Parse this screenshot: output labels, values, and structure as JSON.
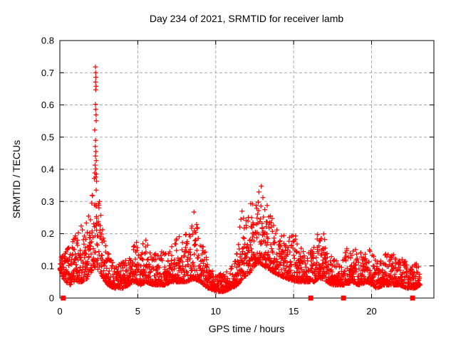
{
  "title": "Day 234 of 2021, SRMTID for receiver lamb",
  "colors": {
    "marker": "#ff0000",
    "grid": "#a8a8a8",
    "frame": "#000000",
    "background": "#ffffff",
    "text": "#000000"
  },
  "chart_data": {
    "type": "scatter",
    "title": "Day 234 of 2021, SRMTID for receiver lamb",
    "xlabel": "GPS time / hours",
    "ylabel": "SRMTID / TECUs",
    "xlim": [
      0,
      24
    ],
    "ylim": [
      0,
      0.8
    ],
    "grid": true,
    "grid_style": "dashed",
    "legend": "none",
    "marker": "plus",
    "marker_color": "#ff0000",
    "x_ticks": {
      "values": [
        0,
        5,
        10,
        15,
        20
      ],
      "labels": [
        "0",
        "5",
        "10",
        "15",
        "20"
      ]
    },
    "y_ticks": {
      "values": [
        0,
        0.1,
        0.2,
        0.3,
        0.4,
        0.5,
        0.6,
        0.7,
        0.8
      ],
      "labels": [
        "0",
        "0.1",
        "0.2",
        "0.3",
        "0.4",
        "0.5",
        "0.6",
        "0.7",
        "0.8"
      ]
    },
    "envelope": {
      "description": "Dense scatter of SRMTID values vs GPS time. Control points [hour, min_value, max_value] of the point-cloud envelope read from the plot; cloud density is concentrated toward the lower bound.",
      "points": [
        [
          0.0,
          0.09,
          0.125
        ],
        [
          0.25,
          0.06,
          0.14
        ],
        [
          0.6,
          0.04,
          0.16
        ],
        [
          1.0,
          0.05,
          0.2
        ],
        [
          1.4,
          0.05,
          0.23
        ],
        [
          1.75,
          0.06,
          0.26
        ],
        [
          2.0,
          0.08,
          0.32
        ],
        [
          2.3,
          0.1,
          0.36
        ],
        [
          2.55,
          0.08,
          0.32
        ],
        [
          2.8,
          0.06,
          0.2
        ],
        [
          3.1,
          0.04,
          0.14
        ],
        [
          3.5,
          0.03,
          0.11
        ],
        [
          4.0,
          0.03,
          0.11
        ],
        [
          4.4,
          0.04,
          0.13
        ],
        [
          4.8,
          0.05,
          0.19
        ],
        [
          5.2,
          0.04,
          0.15
        ],
        [
          5.55,
          0.05,
          0.21
        ],
        [
          5.9,
          0.04,
          0.13
        ],
        [
          6.3,
          0.04,
          0.15
        ],
        [
          6.8,
          0.04,
          0.14
        ],
        [
          7.2,
          0.05,
          0.16
        ],
        [
          7.7,
          0.05,
          0.2
        ],
        [
          8.1,
          0.05,
          0.2
        ],
        [
          8.6,
          0.06,
          0.27
        ],
        [
          9.0,
          0.05,
          0.19
        ],
        [
          9.5,
          0.03,
          0.12
        ],
        [
          10.0,
          0.02,
          0.07
        ],
        [
          10.5,
          0.02,
          0.08
        ],
        [
          11.0,
          0.03,
          0.1
        ],
        [
          11.4,
          0.04,
          0.16
        ],
        [
          11.7,
          0.06,
          0.28
        ],
        [
          11.95,
          0.07,
          0.31
        ],
        [
          12.2,
          0.08,
          0.3
        ],
        [
          12.5,
          0.1,
          0.33
        ],
        [
          12.8,
          0.11,
          0.36
        ],
        [
          13.05,
          0.1,
          0.34
        ],
        [
          13.35,
          0.09,
          0.3
        ],
        [
          13.7,
          0.08,
          0.25
        ],
        [
          14.1,
          0.07,
          0.22
        ],
        [
          14.6,
          0.06,
          0.18
        ],
        [
          15.05,
          0.05,
          0.21
        ],
        [
          15.5,
          0.05,
          0.16
        ],
        [
          16.0,
          0.05,
          0.14
        ],
        [
          16.35,
          0.05,
          0.17
        ],
        [
          16.6,
          0.06,
          0.23
        ],
        [
          16.85,
          0.06,
          0.26
        ],
        [
          17.15,
          0.05,
          0.17
        ],
        [
          17.5,
          0.04,
          0.13
        ],
        [
          17.9,
          0.04,
          0.12
        ],
        [
          18.3,
          0.04,
          0.15
        ],
        [
          18.75,
          0.05,
          0.17
        ],
        [
          19.2,
          0.04,
          0.14
        ],
        [
          19.75,
          0.05,
          0.16
        ],
        [
          20.3,
          0.03,
          0.12
        ],
        [
          20.8,
          0.04,
          0.14
        ],
        [
          21.3,
          0.04,
          0.14
        ],
        [
          21.8,
          0.04,
          0.15
        ],
        [
          22.3,
          0.03,
          0.11
        ],
        [
          22.8,
          0.03,
          0.12
        ],
        [
          23.1,
          0.04,
          0.11
        ]
      ]
    },
    "spike_points": [
      [
        2.28,
        0.718
      ],
      [
        2.3,
        0.7
      ],
      [
        2.31,
        0.686
      ],
      [
        2.29,
        0.671
      ],
      [
        2.32,
        0.658
      ],
      [
        2.3,
        0.647
      ],
      [
        2.28,
        0.602
      ],
      [
        2.3,
        0.586
      ],
      [
        2.32,
        0.569
      ],
      [
        2.33,
        0.551
      ],
      [
        2.24,
        0.522
      ],
      [
        2.29,
        0.49
      ],
      [
        2.27,
        0.471
      ],
      [
        2.31,
        0.455
      ],
      [
        2.28,
        0.441
      ],
      [
        2.33,
        0.427
      ],
      [
        2.26,
        0.413
      ],
      [
        2.3,
        0.401
      ],
      [
        2.24,
        0.389
      ],
      [
        2.31,
        0.376
      ],
      [
        2.36,
        0.363
      ],
      [
        2.21,
        0.372
      ],
      [
        2.34,
        0.385
      ]
    ],
    "zero_markers": [
      0.22,
      16.1,
      18.2,
      22.63
    ],
    "sampling": {
      "t_start": 0,
      "t_end": 23.1,
      "n_points": 2400,
      "t_jitter": 0.012,
      "seed": 7,
      "low_bias_exponent": 2.2
    }
  }
}
